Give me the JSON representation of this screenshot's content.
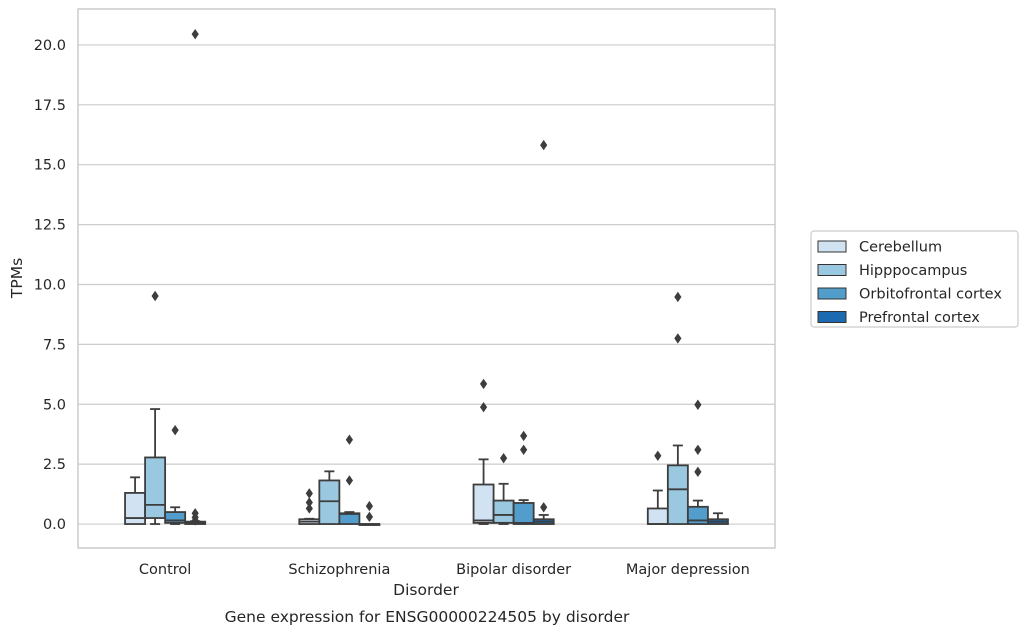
{
  "caption": "Gene expression for ENSG00000224505 by disorder",
  "chart_data": {
    "type": "boxplot",
    "xlabel": "Disorder",
    "ylabel": "TPMs",
    "ylim": [
      -1.0,
      21.5
    ],
    "yticks": [
      "0.0",
      "2.5",
      "5.0",
      "7.5",
      "10.0",
      "12.5",
      "15.0",
      "17.5",
      "20.0"
    ],
    "grid": "horizontal",
    "legend_position": "right",
    "categories": [
      "Control",
      "Schizophrenia",
      "Bipolar disorder",
      "Major depression"
    ],
    "series": [
      {
        "name": "Cerebellum",
        "color": "#d1e2f2",
        "boxes": [
          {
            "whislo": 0.0,
            "q1": 0.0,
            "med": 0.25,
            "q3": 1.3,
            "whishi": 1.95,
            "fliers": []
          },
          {
            "whislo": 0.0,
            "q1": 0.0,
            "med": 0.1,
            "q3": 0.2,
            "whishi": 0.22,
            "fliers": [
              0.65,
              0.9,
              1.28
            ]
          },
          {
            "whislo": 0.0,
            "q1": 0.05,
            "med": 0.15,
            "q3": 1.65,
            "whishi": 2.7,
            "fliers": [
              4.88,
              5.85
            ]
          },
          {
            "whislo": 0.0,
            "q1": 0.0,
            "med": 0.0,
            "q3": 0.65,
            "whishi": 1.4,
            "fliers": [
              2.85
            ]
          }
        ]
      },
      {
        "name": "Hipppocampus",
        "color": "#9ac8e0",
        "boxes": [
          {
            "whislo": 0.0,
            "q1": 0.25,
            "med": 0.8,
            "q3": 2.78,
            "whishi": 4.8,
            "fliers": [
              9.52
            ]
          },
          {
            "whislo": 0.0,
            "q1": 0.0,
            "med": 0.95,
            "q3": 1.82,
            "whishi": 2.2,
            "fliers": []
          },
          {
            "whislo": 0.0,
            "q1": 0.05,
            "med": 0.38,
            "q3": 0.98,
            "whishi": 1.68,
            "fliers": [
              2.75
            ]
          },
          {
            "whislo": 0.0,
            "q1": 0.0,
            "med": 1.45,
            "q3": 2.45,
            "whishi": 3.28,
            "fliers": [
              7.75,
              9.48
            ]
          }
        ]
      },
      {
        "name": "Orbitofrontal cortex",
        "color": "#529dcc",
        "boxes": [
          {
            "whislo": 0.0,
            "q1": 0.05,
            "med": 0.15,
            "q3": 0.5,
            "whishi": 0.7,
            "fliers": [
              3.92
            ]
          },
          {
            "whislo": 0.0,
            "q1": 0.0,
            "med": 0.42,
            "q3": 0.45,
            "whishi": 0.5,
            "fliers": [
              1.82,
              3.52
            ]
          },
          {
            "whislo": 0.0,
            "q1": 0.0,
            "med": 0.05,
            "q3": 0.88,
            "whishi": 1.0,
            "fliers": [
              3.1,
              3.68
            ]
          },
          {
            "whislo": 0.0,
            "q1": 0.0,
            "med": 0.15,
            "q3": 0.72,
            "whishi": 0.98,
            "fliers": [
              2.18,
              3.1,
              4.98
            ]
          }
        ]
      },
      {
        "name": "Prefrontal cortex",
        "color": "#1c6aaf",
        "boxes": [
          {
            "whislo": 0.0,
            "q1": 0.0,
            "med": 0.05,
            "q3": 0.1,
            "whishi": 0.12,
            "fliers": [
              0.15,
              0.28,
              0.45,
              20.45
            ]
          },
          {
            "whislo": 0.0,
            "q1": 0.0,
            "med": 0.0,
            "q3": 0.0,
            "whishi": 0.0,
            "fliers": [
              0.3,
              0.75
            ]
          },
          {
            "whislo": 0.0,
            "q1": 0.0,
            "med": 0.1,
            "q3": 0.2,
            "whishi": 0.38,
            "fliers": [
              0.7,
              15.82
            ]
          },
          {
            "whislo": 0.0,
            "q1": 0.0,
            "med": 0.1,
            "q3": 0.2,
            "whishi": 0.45,
            "fliers": []
          }
        ]
      }
    ]
  }
}
